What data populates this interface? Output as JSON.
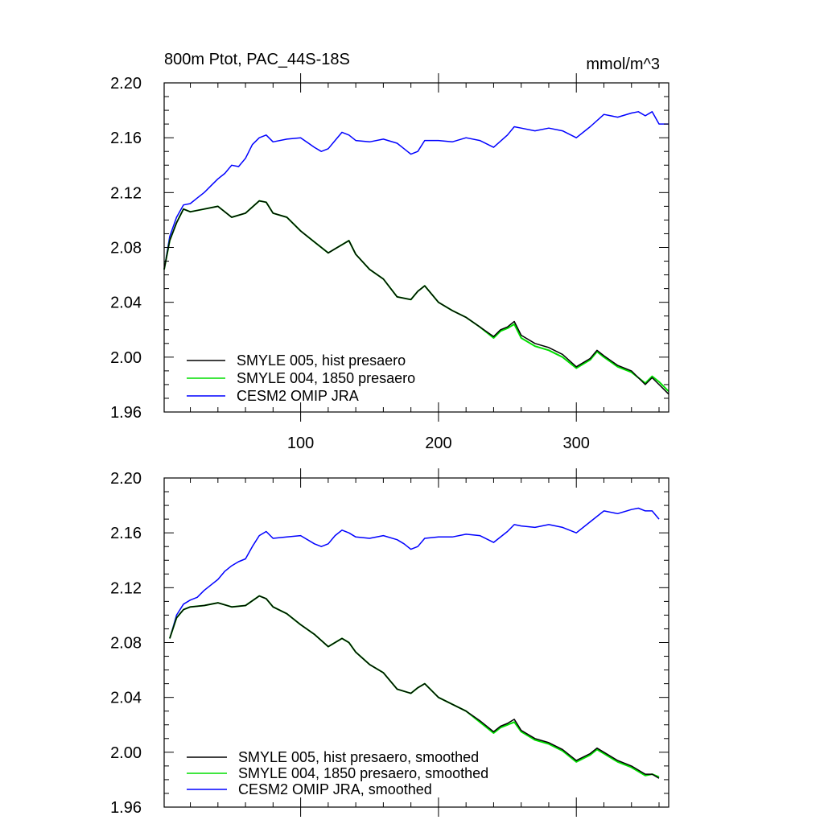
{
  "chart_data": [
    {
      "type": "line",
      "title": "800m Ptot, PAC_44S-18S",
      "units": "mmol/m^3",
      "xlim": [
        1,
        367
      ],
      "ylim": [
        1.96,
        2.2
      ],
      "x_tick_labels": [
        "100",
        "200",
        "300"
      ],
      "y_tick_labels": [
        "2.20",
        "2.16",
        "2.12",
        "2.08",
        "2.04",
        "2.00",
        "1.96"
      ],
      "series": [
        {
          "name": "SMYLE 005, hist presaero",
          "color": "#000000",
          "x": [
            1,
            5,
            10,
            15,
            20,
            30,
            40,
            50,
            60,
            70,
            75,
            80,
            90,
            100,
            110,
            120,
            125,
            130,
            135,
            140,
            150,
            160,
            170,
            180,
            185,
            190,
            195,
            200,
            210,
            220,
            230,
            240,
            245,
            250,
            255,
            260,
            270,
            280,
            290,
            300,
            310,
            315,
            320,
            330,
            340,
            350,
            355,
            360,
            367
          ],
          "y": [
            2.064,
            2.085,
            2.098,
            2.108,
            2.106,
            2.108,
            2.11,
            2.102,
            2.105,
            2.114,
            2.113,
            2.105,
            2.102,
            2.092,
            2.084,
            2.076,
            2.079,
            2.082,
            2.085,
            2.075,
            2.064,
            2.057,
            2.044,
            2.042,
            2.048,
            2.052,
            2.046,
            2.04,
            2.034,
            2.029,
            2.022,
            2.015,
            2.02,
            2.022,
            2.026,
            2.016,
            2.01,
            2.007,
            2.002,
            1.993,
            1.999,
            2.005,
            2.001,
            1.994,
            1.99,
            1.98,
            1.985,
            1.98,
            1.973
          ]
        },
        {
          "name": "SMYLE 004, 1850 presaero",
          "color": "#00dd00",
          "x": [
            1,
            5,
            10,
            15,
            20,
            30,
            40,
            50,
            60,
            70,
            75,
            80,
            90,
            100,
            110,
            120,
            125,
            130,
            135,
            140,
            150,
            160,
            170,
            180,
            185,
            190,
            195,
            200,
            210,
            220,
            230,
            240,
            245,
            250,
            255,
            260,
            270,
            280,
            290,
            300,
            310,
            315,
            320,
            330,
            340,
            350,
            355,
            360,
            367
          ],
          "y": [
            2.064,
            2.085,
            2.098,
            2.108,
            2.106,
            2.108,
            2.11,
            2.102,
            2.105,
            2.114,
            2.113,
            2.105,
            2.102,
            2.092,
            2.084,
            2.076,
            2.079,
            2.082,
            2.085,
            2.075,
            2.064,
            2.057,
            2.044,
            2.042,
            2.048,
            2.052,
            2.046,
            2.04,
            2.034,
            2.029,
            2.022,
            2.014,
            2.019,
            2.021,
            2.024,
            2.014,
            2.008,
            2.005,
            2.0,
            1.992,
            1.998,
            2.004,
            2.0,
            1.993,
            1.989,
            1.981,
            1.986,
            1.982,
            1.975
          ]
        },
        {
          "name": "CESM2 OMIP JRA",
          "color": "#0000ff",
          "x": [
            1,
            5,
            10,
            15,
            20,
            25,
            30,
            35,
            40,
            45,
            50,
            55,
            60,
            65,
            70,
            75,
            80,
            90,
            100,
            110,
            115,
            120,
            125,
            130,
            135,
            140,
            150,
            160,
            170,
            175,
            180,
            185,
            190,
            200,
            210,
            220,
            230,
            240,
            250,
            255,
            260,
            270,
            280,
            290,
            300,
            310,
            320,
            330,
            340,
            345,
            350,
            355,
            360,
            367
          ],
          "y": [
            2.064,
            2.088,
            2.102,
            2.111,
            2.112,
            2.116,
            2.12,
            2.125,
            2.13,
            2.134,
            2.14,
            2.139,
            2.145,
            2.155,
            2.16,
            2.162,
            2.157,
            2.159,
            2.16,
            2.153,
            2.15,
            2.152,
            2.158,
            2.164,
            2.162,
            2.158,
            2.157,
            2.159,
            2.156,
            2.152,
            2.148,
            2.15,
            2.158,
            2.158,
            2.157,
            2.16,
            2.158,
            2.153,
            2.162,
            2.168,
            2.167,
            2.165,
            2.167,
            2.165,
            2.16,
            2.168,
            2.177,
            2.175,
            2.178,
            2.179,
            2.176,
            2.179,
            2.17,
            2.17
          ]
        }
      ],
      "legend_position": "bottom-left",
      "grid": false
    },
    {
      "type": "line",
      "xlim": [
        1,
        367
      ],
      "ylim": [
        1.96,
        2.2
      ],
      "x_tick_labels": [],
      "y_tick_labels": [
        "2.20",
        "2.16",
        "2.12",
        "2.08",
        "2.04",
        "2.00",
        "1.96"
      ],
      "series": [
        {
          "name": "SMYLE 005, hist presaero, smoothed",
          "color": "#000000",
          "x": [
            5,
            10,
            15,
            20,
            30,
            40,
            50,
            60,
            70,
            75,
            80,
            90,
            100,
            110,
            120,
            125,
            130,
            135,
            140,
            150,
            160,
            170,
            180,
            185,
            190,
            195,
            200,
            210,
            220,
            230,
            240,
            245,
            250,
            255,
            260,
            270,
            280,
            290,
            300,
            310,
            315,
            320,
            330,
            340,
            350,
            355,
            360
          ],
          "y": [
            2.083,
            2.098,
            2.104,
            2.106,
            2.107,
            2.109,
            2.106,
            2.107,
            2.114,
            2.112,
            2.106,
            2.101,
            2.093,
            2.086,
            2.077,
            2.08,
            2.083,
            2.08,
            2.073,
            2.064,
            2.058,
            2.046,
            2.043,
            2.047,
            2.05,
            2.045,
            2.04,
            2.035,
            2.03,
            2.023,
            2.015,
            2.019,
            2.021,
            2.024,
            2.016,
            2.01,
            2.007,
            2.002,
            1.994,
            1.999,
            2.003,
            2.0,
            1.994,
            1.99,
            1.984,
            1.984,
            1.981
          ]
        },
        {
          "name": "SMYLE 004, 1850 presaero, smoothed",
          "color": "#00dd00",
          "x": [
            5,
            10,
            15,
            20,
            30,
            40,
            50,
            60,
            70,
            75,
            80,
            90,
            100,
            110,
            120,
            125,
            130,
            135,
            140,
            150,
            160,
            170,
            180,
            185,
            190,
            195,
            200,
            210,
            220,
            230,
            240,
            245,
            250,
            255,
            260,
            270,
            280,
            290,
            300,
            310,
            315,
            320,
            330,
            340,
            350,
            355,
            360
          ],
          "y": [
            2.083,
            2.098,
            2.104,
            2.106,
            2.107,
            2.109,
            2.106,
            2.107,
            2.114,
            2.112,
            2.106,
            2.101,
            2.093,
            2.086,
            2.077,
            2.08,
            2.083,
            2.08,
            2.073,
            2.064,
            2.058,
            2.046,
            2.043,
            2.047,
            2.05,
            2.045,
            2.04,
            2.035,
            2.03,
            2.022,
            2.014,
            2.018,
            2.02,
            2.022,
            2.015,
            2.009,
            2.006,
            2.001,
            1.993,
            1.998,
            2.002,
            1.999,
            1.993,
            1.989,
            1.983,
            1.984,
            1.982
          ]
        },
        {
          "name": "CESM2 OMIP JRA, smoothed",
          "color": "#0000ff",
          "x": [
            5,
            10,
            15,
            20,
            25,
            30,
            35,
            40,
            45,
            50,
            55,
            60,
            65,
            70,
            75,
            80,
            90,
            100,
            110,
            115,
            120,
            125,
            130,
            135,
            140,
            150,
            160,
            170,
            175,
            180,
            185,
            190,
            200,
            210,
            220,
            230,
            240,
            250,
            255,
            260,
            270,
            280,
            290,
            300,
            310,
            320,
            330,
            340,
            345,
            350,
            355,
            360
          ],
          "y": [
            2.083,
            2.1,
            2.108,
            2.111,
            2.113,
            2.118,
            2.122,
            2.126,
            2.132,
            2.136,
            2.139,
            2.141,
            2.15,
            2.158,
            2.161,
            2.156,
            2.157,
            2.158,
            2.152,
            2.15,
            2.152,
            2.158,
            2.162,
            2.16,
            2.157,
            2.156,
            2.158,
            2.155,
            2.152,
            2.148,
            2.15,
            2.156,
            2.157,
            2.157,
            2.159,
            2.158,
            2.153,
            2.161,
            2.166,
            2.165,
            2.164,
            2.166,
            2.164,
            2.16,
            2.168,
            2.176,
            2.174,
            2.177,
            2.178,
            2.176,
            2.176,
            2.17
          ]
        }
      ],
      "legend_position": "bottom-left",
      "grid": false
    }
  ]
}
